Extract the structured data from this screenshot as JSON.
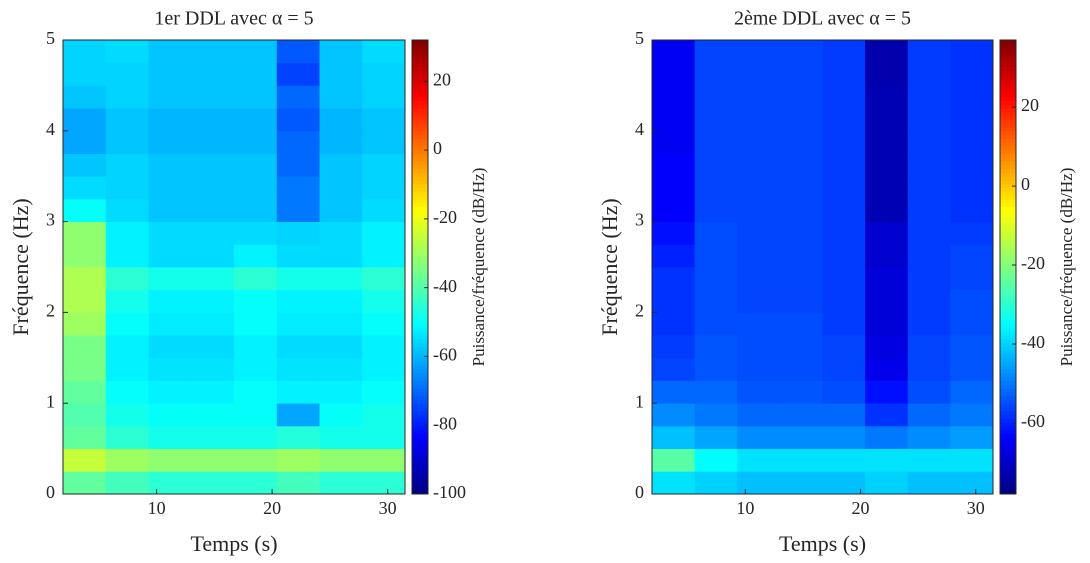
{
  "chart_data": [
    {
      "type": "heatmap",
      "title": "1er DDL avec α = 5",
      "x_label": "Temps (s)",
      "y_label": "Fréquence (Hz)",
      "colorbar_label": "Puissance/fréquence (dB/Hz)",
      "colormap": "jet",
      "x_bins": [
        1.9,
        5.6,
        9.3,
        13.0,
        16.7,
        20.4,
        24.1,
        27.8,
        31.5
      ],
      "y_bins": [
        0,
        0.25,
        0.5,
        0.75,
        1,
        1.25,
        1.5,
        1.75,
        2,
        2.25,
        2.5,
        2.75,
        3,
        3.25,
        3.5,
        3.75,
        4,
        4.25,
        4.5,
        4.75,
        5
      ],
      "xlim": [
        1.9,
        31.5
      ],
      "xticks": [
        10,
        20,
        30
      ],
      "ylim": [
        0,
        5
      ],
      "yticks": [
        0,
        1,
        2,
        3,
        4,
        5
      ],
      "clim": [
        -100,
        32
      ],
      "cticks": [
        -100,
        -80,
        -60,
        -40,
        -20,
        0,
        20
      ],
      "values": [
        [
          -38,
          -42,
          -45,
          -45,
          -45,
          -42,
          -45,
          -45
        ],
        [
          -25,
          -30,
          -32,
          -32,
          -32,
          -30,
          -32,
          -32
        ],
        [
          -38,
          -45,
          -48,
          -48,
          -48,
          -46,
          -48,
          -48
        ],
        [
          -40,
          -48,
          -50,
          -50,
          -50,
          -62,
          -50,
          -48
        ],
        [
          -38,
          -50,
          -52,
          -52,
          -50,
          -52,
          -52,
          -50
        ],
        [
          -35,
          -52,
          -54,
          -54,
          -52,
          -54,
          -54,
          -52
        ],
        [
          -35,
          -52,
          -55,
          -55,
          -52,
          -55,
          -55,
          -52
        ],
        [
          -30,
          -50,
          -53,
          -53,
          -50,
          -53,
          -53,
          -50
        ],
        [
          -28,
          -48,
          -52,
          -52,
          -50,
          -52,
          -52,
          -48
        ],
        [
          -28,
          -45,
          -48,
          -48,
          -45,
          -48,
          -48,
          -45
        ],
        [
          -32,
          -52,
          -55,
          -55,
          -52,
          -55,
          -55,
          -52
        ],
        [
          -32,
          -52,
          -55,
          -55,
          -55,
          -56,
          -55,
          -52
        ],
        [
          -50,
          -55,
          -58,
          -58,
          -58,
          -68,
          -58,
          -55
        ],
        [
          -55,
          -56,
          -58,
          -58,
          -58,
          -68,
          -58,
          -56
        ],
        [
          -58,
          -56,
          -58,
          -58,
          -58,
          -70,
          -58,
          -56
        ],
        [
          -62,
          -58,
          -60,
          -60,
          -60,
          -70,
          -60,
          -58
        ],
        [
          -62,
          -58,
          -60,
          -60,
          -60,
          -72,
          -60,
          -58
        ],
        [
          -58,
          -56,
          -58,
          -58,
          -58,
          -70,
          -58,
          -56
        ],
        [
          -56,
          -56,
          -58,
          -58,
          -58,
          -75,
          -58,
          -56
        ],
        [
          -56,
          -55,
          -58,
          -58,
          -58,
          -72,
          -58,
          -55
        ]
      ]
    },
    {
      "type": "heatmap",
      "title": "2ème DDL avec α = 5",
      "x_label": "Temps (s)",
      "y_label": "Fréquence (Hz)",
      "colorbar_label": "Puissance/fréquence (dB/Hz)",
      "colormap": "jet",
      "x_bins": [
        1.9,
        5.6,
        9.3,
        13.0,
        16.7,
        20.4,
        24.1,
        27.8,
        31.5
      ],
      "y_bins": [
        0,
        0.25,
        0.5,
        0.75,
        1,
        1.25,
        1.5,
        1.75,
        2,
        2.25,
        2.5,
        2.75,
        3,
        3.25,
        3.5,
        3.75,
        4,
        4.25,
        4.5,
        4.75,
        5
      ],
      "xlim": [
        1.9,
        31.5
      ],
      "xticks": [
        10,
        20,
        30
      ],
      "ylim": [
        0,
        5
      ],
      "yticks": [
        0,
        1,
        2,
        3,
        4,
        5
      ],
      "clim": [
        -78,
        37
      ],
      "cticks": [
        -60,
        -40,
        -20,
        0,
        20
      ],
      "values": [
        [
          -38,
          -40,
          -42,
          -42,
          -42,
          -40,
          -42,
          -42
        ],
        [
          -25,
          -35,
          -38,
          -38,
          -38,
          -38,
          -38,
          -38
        ],
        [
          -42,
          -45,
          -48,
          -48,
          -48,
          -50,
          -48,
          -46
        ],
        [
          -48,
          -50,
          -52,
          -52,
          -52,
          -58,
          -52,
          -50
        ],
        [
          -52,
          -52,
          -54,
          -54,
          -55,
          -62,
          -55,
          -52
        ],
        [
          -56,
          -54,
          -55,
          -55,
          -56,
          -66,
          -56,
          -54
        ],
        [
          -57,
          -54,
          -55,
          -55,
          -56,
          -67,
          -56,
          -54
        ],
        [
          -58,
          -55,
          -55,
          -55,
          -57,
          -68,
          -57,
          -55
        ],
        [
          -58,
          -55,
          -56,
          -56,
          -57,
          -68,
          -57,
          -55
        ],
        [
          -58,
          -55,
          -56,
          -56,
          -57,
          -68,
          -57,
          -56
        ],
        [
          -60,
          -55,
          -56,
          -56,
          -57,
          -69,
          -57,
          -56
        ],
        [
          -62,
          -55,
          -56,
          -56,
          -57,
          -69,
          -57,
          -57
        ],
        [
          -64,
          -56,
          -56,
          -56,
          -57,
          -72,
          -57,
          -58
        ],
        [
          -64,
          -56,
          -56,
          -56,
          -57,
          -72,
          -57,
          -58
        ],
        [
          -64,
          -56,
          -56,
          -56,
          -57,
          -72,
          -57,
          -58
        ],
        [
          -65,
          -56,
          -56,
          -56,
          -57,
          -72,
          -57,
          -58
        ],
        [
          -65,
          -56,
          -56,
          -56,
          -57,
          -72,
          -57,
          -58
        ],
        [
          -65,
          -56,
          -56,
          -56,
          -57,
          -72,
          -57,
          -58
        ],
        [
          -65,
          -56,
          -56,
          -56,
          -57,
          -73,
          -57,
          -58
        ],
        [
          -65,
          -56,
          -56,
          -56,
          -57,
          -73,
          -57,
          -58
        ]
      ]
    }
  ]
}
